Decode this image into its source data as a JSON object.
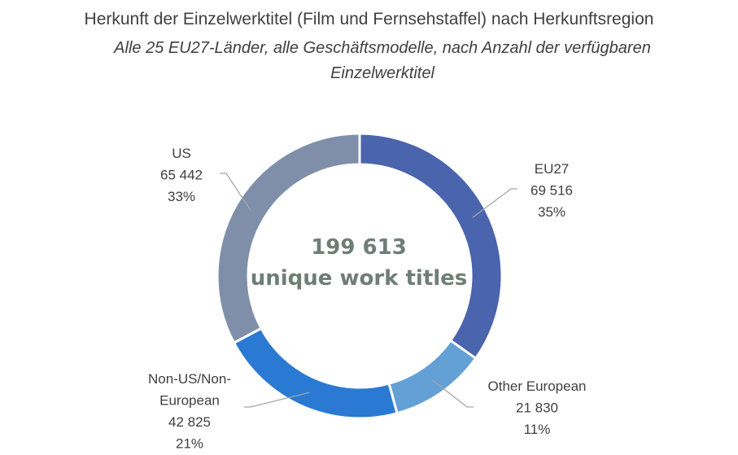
{
  "title": "Herkunft der Einzelwerktitel (Film und Fernsehstaffel) nach Herkunftsregion",
  "subtitle": "Alle 25 EU27-Länder, alle Geschäftsmodelle, nach Anzahl der verfügbaren Einzelwerktitel",
  "chart_data": {
    "type": "pie",
    "variant": "donut",
    "center_text": [
      "199 613",
      "unique work titles"
    ],
    "total": 199613,
    "slices": [
      {
        "name": "EU27",
        "value": 69516,
        "value_label": "69 516",
        "percent_label": "35%",
        "color": "#4a64ad"
      },
      {
        "name": "Other European",
        "value": 21830,
        "value_label": "21 830",
        "percent_label": "11%",
        "color": "#63a0d6"
      },
      {
        "name": "Non-US/Non-European",
        "name_lines": [
          "Non-US/Non-",
          "European"
        ],
        "value": 42825,
        "value_label": "42 825",
        "percent_label": "21%",
        "color": "#2a7ad4"
      },
      {
        "name": "US",
        "value": 65442,
        "value_label": "65 442",
        "percent_label": "33%",
        "color": "#7f8fa9"
      }
    ],
    "legend": "none"
  }
}
